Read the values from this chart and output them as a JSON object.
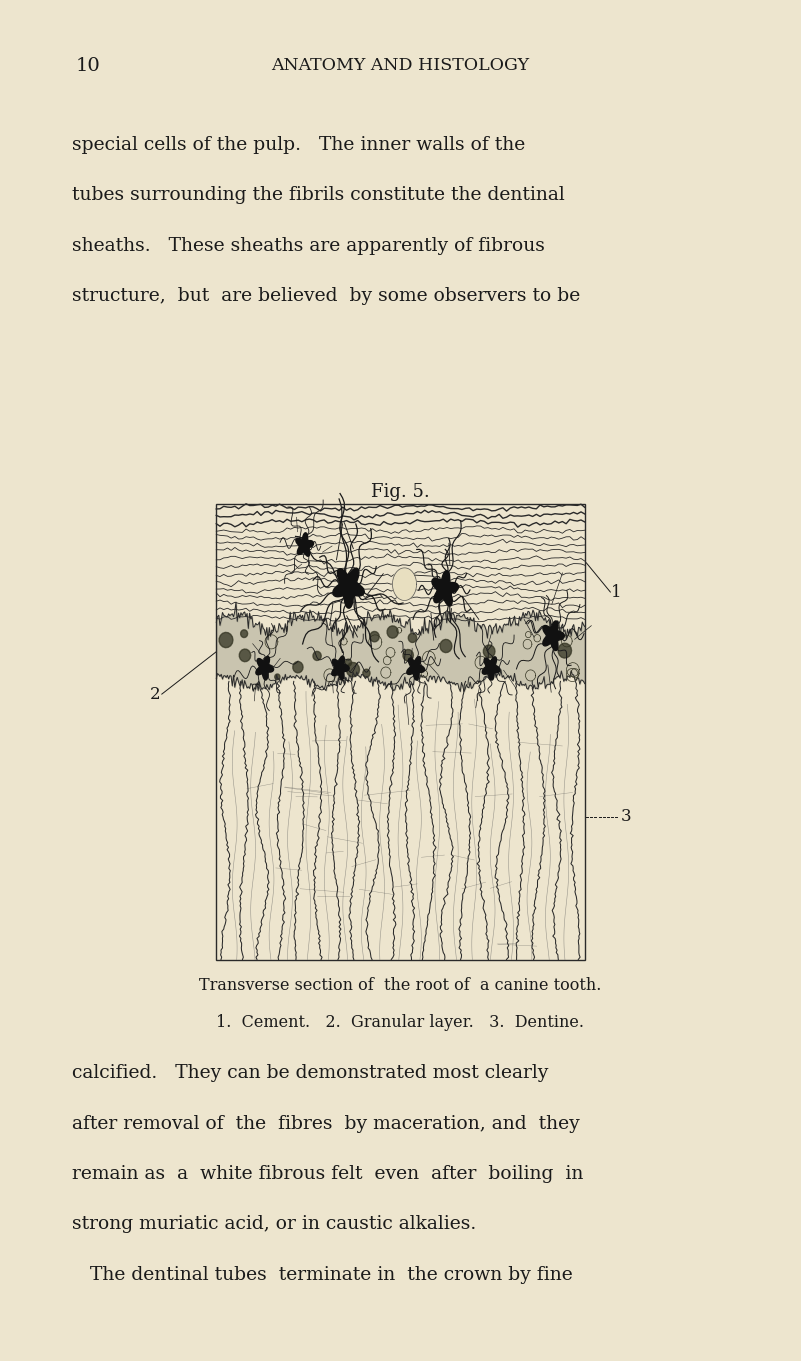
{
  "bg_color": "#ede5ce",
  "page_width": 8.01,
  "page_height": 13.61,
  "page_number": "10",
  "header_title": "ANATOMY AND HISTOLOGY",
  "top_text_lines": [
    "special cells of the pulp.   The inner walls of the",
    "tubes surrounding the fibrils constitute the dentinal",
    "sheaths.   These sheaths are apparently of fibrous",
    "structure,  but  are believed  by some observers to be"
  ],
  "fig_title": "Fig. 5.",
  "caption_line1": "Transverse section of  the root of  a canine tooth.",
  "caption_line2": "1.  Cement.   2.  Granular layer.   3.  Dentine.",
  "bottom_text_lines": [
    "calcified.   They can be demonstrated most clearly",
    "after removal of  the  fibres  by maceration, and  they",
    "remain as  a  white fibrous felt  even  after  boiling  in",
    "strong muriatic acid, or in caustic alkalies.",
    "   The dentinal tubes  terminate in  the crown by fine"
  ],
  "text_color": "#1a1a1a",
  "font_size_body": 13.5,
  "font_size_header": 13,
  "font_size_caption": 11.5
}
